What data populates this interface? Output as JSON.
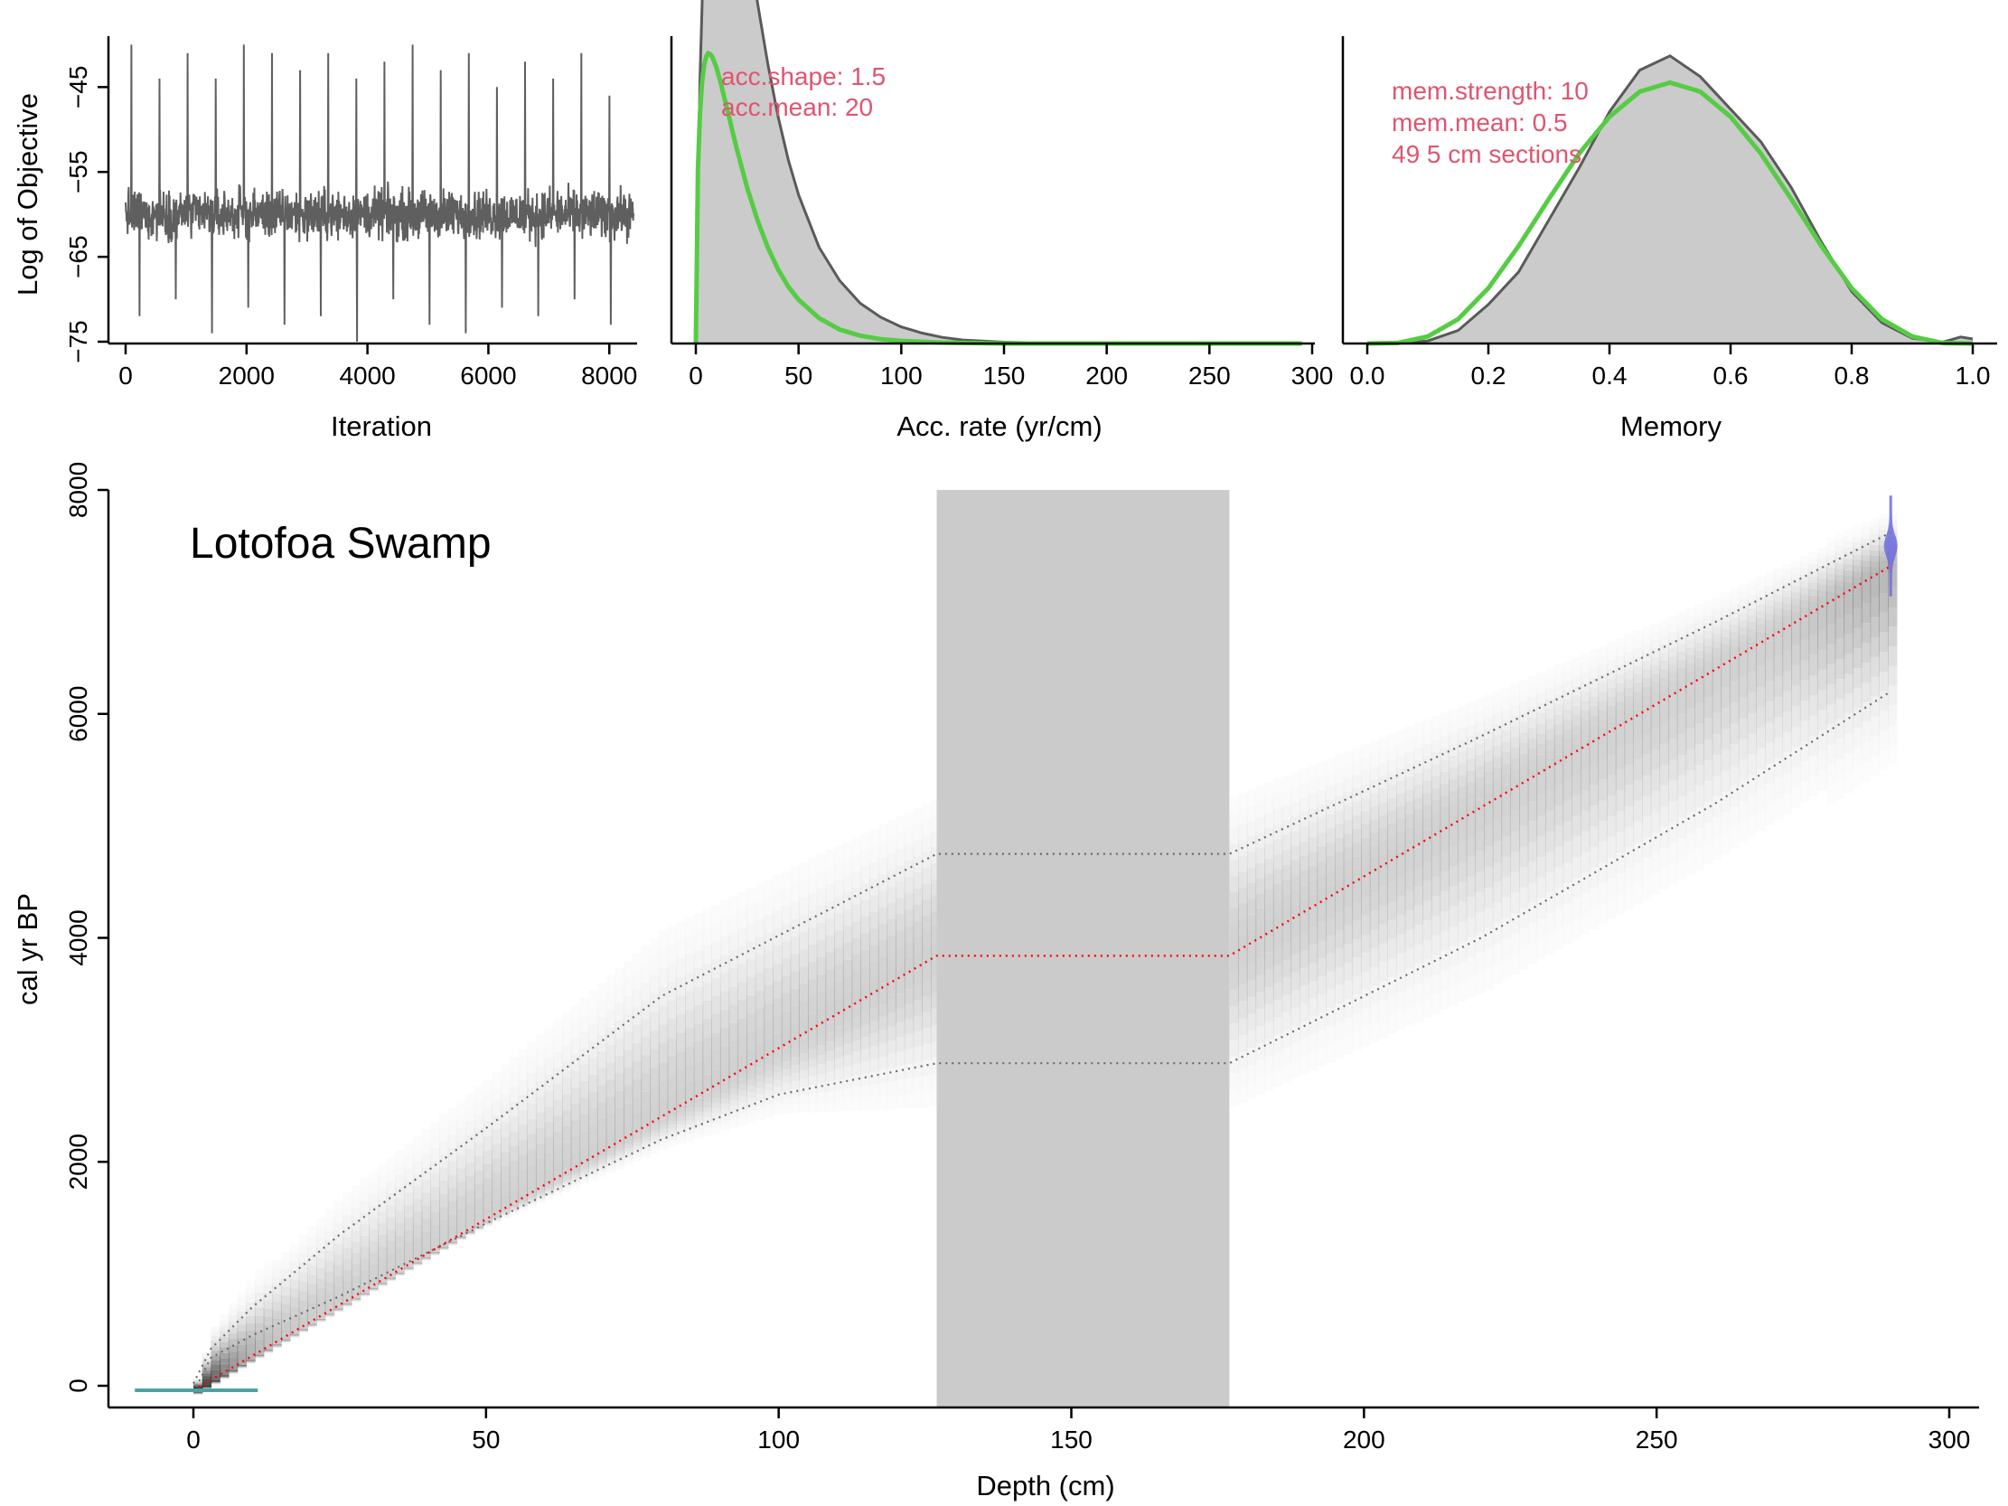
{
  "colors": {
    "axis": "#000000",
    "trace": "#5f5f5f",
    "density_fill": "#cbcbcb",
    "density_line": "#5a5a5a",
    "prior": "#55cc44",
    "annotation": "#e05470",
    "hiatus": "#cbcbcb",
    "median": "#ff0000",
    "range": "#6a6a6a",
    "date_blue": "#6b6bdc",
    "surface_teal": "#4aa3a3"
  },
  "chart_data": [
    {
      "type": "line",
      "name": "iterations",
      "xlabel": "Iteration",
      "ylabel": "Log of Objective",
      "xlim": [
        0,
        8400
      ],
      "ylim": [
        -75,
        -39
      ],
      "x_ticks": [
        "0",
        "2000",
        "4000",
        "6000",
        "8000"
      ],
      "y_ticks": [
        "−45",
        "−55",
        "−65",
        "−75"
      ],
      "n_iterations": 8400,
      "typical_band": [
        -66,
        -54
      ],
      "spikes_up": [
        -40,
        -44,
        -41,
        -44,
        -40,
        -41,
        -43,
        -41,
        -44,
        -42,
        -40,
        -43,
        -41,
        -45,
        -42,
        -44,
        -41,
        -46
      ],
      "spikes_down": [
        -72,
        -70,
        -74,
        -71,
        -73,
        -72,
        -75,
        -70,
        -73,
        -74,
        -71,
        -72,
        -70,
        -73
      ],
      "trace_style": "noisy MCMC trace, stationary around -60"
    },
    {
      "type": "area",
      "name": "accumulation-rate",
      "xlabel": "Acc. rate (yr/cm)",
      "xlim": [
        -5,
        300
      ],
      "x_ticks": [
        "0",
        "50",
        "100",
        "150",
        "200",
        "250",
        "300"
      ],
      "posterior": {
        "x": [
          0,
          2,
          5,
          8,
          12,
          16,
          20,
          25,
          30,
          35,
          40,
          45,
          50,
          55,
          60,
          70,
          80,
          90,
          100,
          110,
          120,
          130,
          150,
          175,
          200,
          250,
          295
        ],
        "density": [
          0.002,
          0.03,
          0.055,
          0.063,
          0.064,
          0.061,
          0.055,
          0.047,
          0.039,
          0.032,
          0.026,
          0.021,
          0.017,
          0.014,
          0.011,
          0.0072,
          0.0046,
          0.003,
          0.0019,
          0.0012,
          0.0007,
          0.0004,
          0.00015,
          5e-05,
          2e-05,
          0.0,
          0.0
        ]
      },
      "prior": {
        "distribution": "gamma",
        "shape": 1.5,
        "mean": 20,
        "x": [
          0,
          1,
          2,
          3,
          4,
          5,
          6,
          7,
          8,
          10,
          12,
          14,
          16,
          18,
          20,
          25,
          30,
          35,
          40,
          45,
          50,
          60,
          70,
          80,
          90,
          100,
          120,
          150,
          200,
          250,
          295
        ],
        "density": [
          0,
          0.0198,
          0.0262,
          0.0298,
          0.0318,
          0.0328,
          0.0332,
          0.0331,
          0.0328,
          0.0316,
          0.0299,
          0.028,
          0.0261,
          0.0241,
          0.0222,
          0.0178,
          0.0141,
          0.011,
          0.0085,
          0.0065,
          0.005,
          0.0029,
          0.0016,
          0.0009,
          0.0005,
          0.0003,
          0.0001,
          0.0,
          0.0,
          0.0,
          0.0
        ]
      },
      "annotations": [
        "acc.shape:  1.5",
        "acc.mean:  20"
      ]
    },
    {
      "type": "area",
      "name": "memory",
      "xlabel": "Memory",
      "xlim": [
        -0.01,
        1.03
      ],
      "x_ticks": [
        "0.0",
        "0.2",
        "0.4",
        "0.6",
        "0.8",
        "1.0"
      ],
      "posterior": {
        "x": [
          0.0,
          0.05,
          0.1,
          0.15,
          0.2,
          0.25,
          0.3,
          0.35,
          0.4,
          0.45,
          0.5,
          0.55,
          0.6,
          0.65,
          0.7,
          0.75,
          0.8,
          0.85,
          0.9,
          0.95,
          0.98,
          1.0
        ],
        "density": [
          0.0,
          0.002,
          0.02,
          0.1,
          0.3,
          0.55,
          0.95,
          1.35,
          1.78,
          2.1,
          2.21,
          2.05,
          1.8,
          1.55,
          1.2,
          0.78,
          0.4,
          0.16,
          0.04,
          0.01,
          0.05,
          0.035
        ]
      },
      "prior": {
        "distribution": "beta",
        "strength": 10,
        "mean": 0.5,
        "x": [
          0.0,
          0.05,
          0.1,
          0.15,
          0.2,
          0.25,
          0.3,
          0.35,
          0.4,
          0.45,
          0.5,
          0.55,
          0.6,
          0.65,
          0.7,
          0.75,
          0.8,
          0.85,
          0.9,
          0.95,
          1.0
        ],
        "density": [
          0.0,
          0.004,
          0.054,
          0.187,
          0.425,
          0.749,
          1.111,
          1.46,
          1.742,
          1.935,
          2.004,
          1.935,
          1.742,
          1.46,
          1.111,
          0.749,
          0.425,
          0.187,
          0.054,
          0.004,
          0.0
        ]
      },
      "annotations": [
        "mem.strength: 10",
        "mem.mean: 0.5",
        "49 5 cm sections"
      ]
    },
    {
      "type": "area",
      "name": "age-depth",
      "title": "Lotofoa Swamp",
      "xlabel": "Depth (cm)",
      "ylabel": "cal yr BP",
      "xlim": [
        -15,
        307
      ],
      "ylim": [
        -130,
        8000
      ],
      "x_ticks": [
        "0",
        "50",
        "100",
        "150",
        "200",
        "250",
        "300"
      ],
      "y_ticks": [
        "0",
        "2000",
        "4000",
        "6000",
        "8000"
      ],
      "hiatus": {
        "depth_from": 127,
        "depth_to": 177
      },
      "median": {
        "depth": [
          0,
          127,
          177,
          290
        ],
        "age": [
          -40,
          3840,
          3840,
          7320
        ]
      },
      "upper_95": {
        "depth": [
          0,
          3,
          10,
          25,
          50,
          80,
          127,
          177,
          220,
          260,
          290
        ],
        "age": [
          20,
          330,
          700,
          1350,
          2300,
          3480,
          4750,
          4750,
          5800,
          6820,
          7620
        ]
      },
      "lower_95": {
        "depth": [
          0,
          3,
          10,
          25,
          50,
          80,
          100,
          127,
          177,
          220,
          260,
          290
        ],
        "age": [
          -60,
          250,
          450,
          800,
          1450,
          2200,
          2600,
          2880,
          2880,
          4000,
          5200,
          6200
        ]
      },
      "dates": [
        {
          "kind": "surface",
          "depth": 0,
          "age": -40,
          "depth_range": [
            -10,
            11
          ]
        },
        {
          "kind": "radiocarbon",
          "depth": 290,
          "age": 7500,
          "age_range": [
            7050,
            7950
          ]
        }
      ]
    }
  ]
}
